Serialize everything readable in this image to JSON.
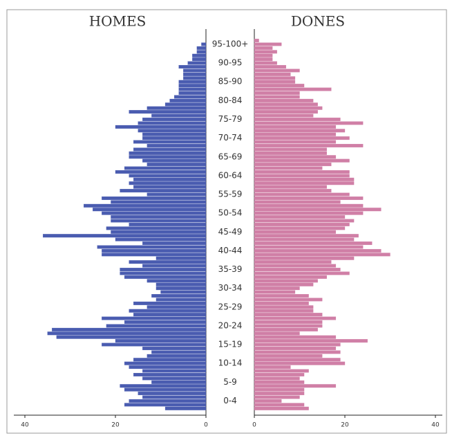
{
  "chart_data": {
    "type": "pyramid",
    "categories": [
      null,
      null,
      "0-4",
      null,
      null,
      null,
      null,
      "5-9",
      null,
      null,
      null,
      null,
      "10-14",
      null,
      null,
      null,
      null,
      "15-19",
      null,
      null,
      null,
      null,
      "20-24",
      null,
      null,
      null,
      null,
      "25-29",
      null,
      null,
      null,
      null,
      "30-34",
      null,
      null,
      null,
      null,
      "35-39",
      null,
      null,
      null,
      null,
      "40-44",
      null,
      null,
      null,
      null,
      "45-49",
      null,
      null,
      null,
      null,
      "50-54",
      null,
      null,
      null,
      null,
      "55-59",
      null,
      null,
      null,
      null,
      "60-64",
      null,
      null,
      null,
      null,
      "65-69",
      null,
      null,
      null,
      null,
      "70-74",
      null,
      null,
      null,
      null,
      "75-79",
      null,
      null,
      null,
      null,
      "80-84",
      null,
      null,
      null,
      null,
      "85-90",
      null,
      null,
      null,
      null,
      "90-95",
      null,
      null,
      null,
      null,
      "95-100+",
      null,
      null,
      null
    ],
    "series": [
      {
        "name": "HOMES",
        "color": "#4a5cb0",
        "values": [
          9,
          18,
          17,
          14,
          15,
          18,
          19,
          12,
          14,
          16,
          14,
          17,
          18,
          16,
          13,
          12,
          14,
          23,
          20,
          33,
          35,
          34,
          22,
          18,
          23,
          16,
          17,
          13,
          16,
          11,
          12,
          10,
          11,
          11,
          13,
          18,
          19,
          19,
          14,
          17,
          11,
          23,
          23,
          24,
          14,
          20,
          36,
          21,
          22,
          17,
          21,
          21,
          23,
          25,
          27,
          21,
          23,
          13,
          19,
          16,
          17,
          16,
          17,
          20,
          18,
          13,
          14,
          17,
          17,
          16,
          13,
          16,
          14,
          14,
          15,
          20,
          15,
          14,
          12,
          17,
          13,
          9,
          8,
          7,
          6,
          6,
          6,
          6,
          5,
          5,
          5,
          6,
          4,
          3,
          3,
          2,
          2,
          1,
          0,
          0,
          0
        ]
      },
      {
        "name": "DONES",
        "color": "#d07fa6",
        "values": [
          12,
          11,
          6,
          10,
          11,
          11,
          18,
          11,
          10,
          11,
          12,
          8,
          20,
          19,
          15,
          19,
          18,
          19,
          25,
          18,
          10,
          14,
          15,
          15,
          18,
          15,
          13,
          13,
          12,
          15,
          12,
          9,
          10,
          13,
          14,
          16,
          21,
          19,
          18,
          17,
          22,
          30,
          28,
          24,
          26,
          22,
          23,
          18,
          20,
          21,
          22,
          20,
          24,
          28,
          24,
          19,
          24,
          21,
          17,
          16,
          22,
          22,
          21,
          21,
          15,
          17,
          21,
          18,
          16,
          16,
          24,
          18,
          21,
          18,
          20,
          18,
          24,
          19,
          13,
          14,
          15,
          14,
          13,
          10,
          10,
          17,
          11,
          9,
          9,
          8,
          10,
          7,
          5,
          4,
          4,
          5,
          4,
          6,
          1,
          0,
          0
        ]
      }
    ],
    "xlim": [
      0,
      40
    ],
    "xticks": [
      0,
      20,
      40
    ]
  }
}
